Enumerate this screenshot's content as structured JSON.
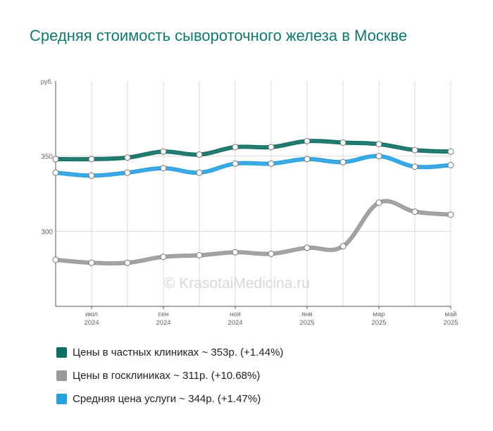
{
  "title": "Средняя стоимость сывороточного железа в Москве",
  "watermark": "© KrasotaiMedicina.ru",
  "chart_data": {
    "type": "line",
    "y_unit": "руб.",
    "ylim": [
      250,
      400
    ],
    "yticks": [
      300,
      350
    ],
    "grid": true,
    "x_count": 12,
    "x_ticks": [
      {
        "index": 1,
        "month": "июл",
        "year": "2024"
      },
      {
        "index": 3,
        "month": "сен",
        "year": "2024"
      },
      {
        "index": 5,
        "month": "ноя",
        "year": "2024"
      },
      {
        "index": 7,
        "month": "янв",
        "year": "2025"
      },
      {
        "index": 9,
        "month": "мар",
        "year": "2025"
      },
      {
        "index": 11,
        "month": "май",
        "year": "2025"
      }
    ],
    "series": [
      {
        "name": "Цены в частных клиниках",
        "color": "#0e6e62",
        "values": [
          348,
          348,
          349,
          353,
          351,
          356,
          356,
          360,
          359,
          358,
          354,
          353
        ]
      },
      {
        "name": "Цены в госклиниках",
        "color": "#9a9a9a",
        "values": [
          281,
          279,
          279,
          283,
          284,
          286,
          285,
          289,
          290,
          319,
          313,
          311
        ]
      },
      {
        "name": "Средняя цена услуги",
        "color": "#27a0e0",
        "values": [
          339,
          337,
          339,
          342,
          339,
          345,
          345,
          348,
          346,
          350,
          343,
          344
        ]
      }
    ],
    "legend_position": "bottom"
  },
  "legend": [
    {
      "label": "Цены в частных клиниках ~ 353р. (+1.44%)",
      "color": "#0e6e62"
    },
    {
      "label": "Цены в госклиниках ~ 311р. (+10.68%)",
      "color": "#9a9a9a"
    },
    {
      "label": "Средняя цена услуги ~ 344р. (+1.47%)",
      "color": "#27a0e0"
    }
  ]
}
